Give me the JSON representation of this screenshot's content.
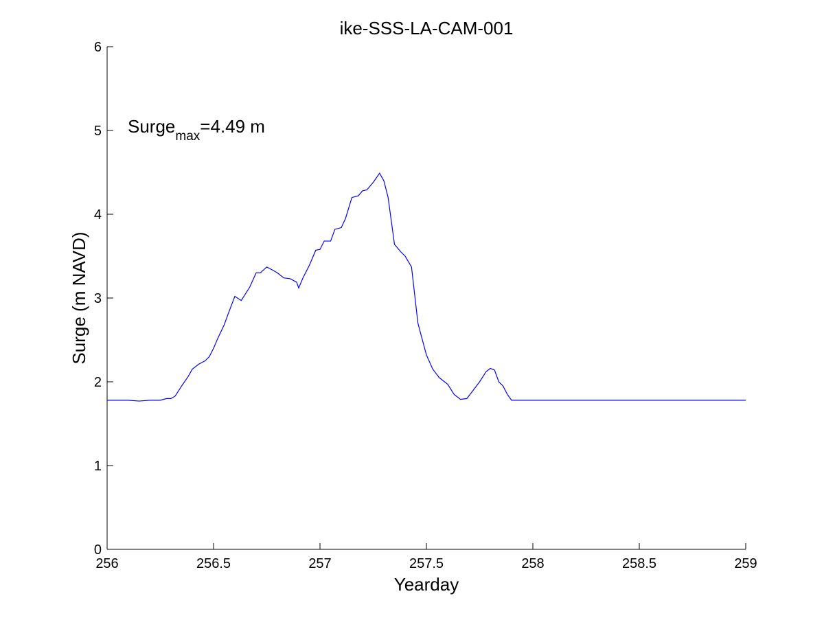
{
  "chart_data": {
    "type": "line",
    "title": "ike-SSS-LA-CAM-001",
    "xlabel": "Yearday",
    "ylabel": "Surge (m NAVD)",
    "xlim": [
      256,
      259
    ],
    "ylim": [
      0,
      6
    ],
    "xticks": [
      256,
      256.5,
      257,
      257.5,
      258,
      258.5,
      259
    ],
    "xtick_labels": [
      "256",
      "256.5",
      "257",
      "257.5",
      "258",
      "258.5",
      "259"
    ],
    "yticks": [
      0,
      1,
      2,
      3,
      4,
      5,
      6
    ],
    "ytick_labels": [
      "0",
      "1",
      "2",
      "3",
      "4",
      "5",
      "6"
    ],
    "grid": false,
    "line_color": "#0000ff",
    "annotation": {
      "prefix": "Surge",
      "subscript": "max",
      "suffix": "=4.49 m"
    },
    "series": [
      {
        "x": [
          256.0,
          256.05,
          256.1,
          256.15,
          256.2,
          256.25,
          256.28,
          256.3,
          256.32,
          256.35,
          256.38,
          256.4,
          256.43,
          256.46,
          256.48,
          256.5,
          256.52,
          256.55,
          256.57,
          256.6,
          256.63,
          256.65,
          256.67,
          256.7,
          256.72,
          256.75,
          256.78,
          256.8,
          256.83,
          256.86,
          256.89,
          256.9,
          256.92,
          256.95,
          256.98,
          257.0,
          257.02,
          257.05,
          257.07,
          257.1,
          257.12,
          257.15,
          257.18,
          257.2,
          257.22,
          257.25,
          257.28,
          257.3,
          257.32,
          257.35,
          257.38,
          257.4,
          257.43,
          257.46,
          257.5,
          257.53,
          257.56,
          257.6,
          257.63,
          257.66,
          257.69,
          257.72,
          257.75,
          257.78,
          257.8,
          257.82,
          257.84,
          257.86,
          257.88,
          257.9,
          258.0,
          258.2,
          258.5,
          258.75,
          259.0
        ],
        "y": [
          1.78,
          1.78,
          1.78,
          1.77,
          1.78,
          1.78,
          1.8,
          1.8,
          1.83,
          1.95,
          2.06,
          2.15,
          2.21,
          2.25,
          2.3,
          2.4,
          2.52,
          2.68,
          2.82,
          3.02,
          2.97,
          3.05,
          3.13,
          3.3,
          3.3,
          3.37,
          3.33,
          3.3,
          3.24,
          3.23,
          3.19,
          3.12,
          3.24,
          3.39,
          3.57,
          3.58,
          3.68,
          3.68,
          3.82,
          3.84,
          3.95,
          4.2,
          4.22,
          4.28,
          4.29,
          4.38,
          4.49,
          4.4,
          4.2,
          3.64,
          3.55,
          3.5,
          3.37,
          2.7,
          2.32,
          2.15,
          2.05,
          1.97,
          1.85,
          1.79,
          1.8,
          1.9,
          2.0,
          2.12,
          2.16,
          2.14,
          2.0,
          1.95,
          1.85,
          1.78,
          1.78,
          1.78,
          1.78,
          1.78,
          1.78
        ]
      }
    ]
  }
}
